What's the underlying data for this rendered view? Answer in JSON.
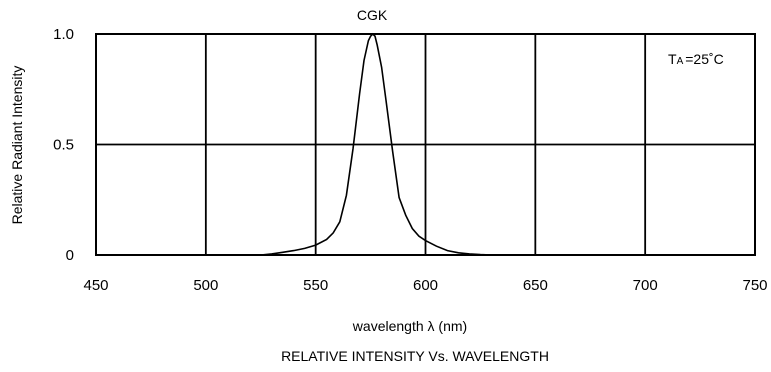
{
  "chart_data": {
    "type": "line",
    "top_label": "CGK",
    "xlabel": "wavelength λ (nm)",
    "ylabel": "Relative Radiant Intensity",
    "caption": "RELATIVE INTENSITY Vs. WAVELENGTH",
    "annotation": {
      "main": "T",
      "sub": "A",
      "rest": "=25˚C"
    },
    "xlim": [
      450,
      750
    ],
    "ylim": [
      0,
      1.0
    ],
    "x_ticks": [
      450,
      500,
      550,
      600,
      650,
      700,
      750
    ],
    "x_tick_labels": [
      "450",
      "500",
      "550",
      "600",
      "650",
      "700",
      "750"
    ],
    "y_ticks": [
      0,
      0.5,
      1.0
    ],
    "y_tick_labels": [
      "0",
      "0.5",
      "1.0"
    ],
    "grid": true,
    "series": [
      {
        "x": [
          525,
          530,
          535,
          540,
          545,
          550,
          555,
          558,
          561,
          564,
          567,
          570,
          572,
          574,
          575,
          576,
          577,
          578,
          580,
          582,
          585,
          588,
          591,
          594,
          597,
          600,
          605,
          610,
          615,
          620,
          625,
          630
        ],
        "y": [
          0.0,
          0.005,
          0.012,
          0.02,
          0.03,
          0.045,
          0.07,
          0.1,
          0.15,
          0.27,
          0.48,
          0.73,
          0.88,
          0.97,
          0.99,
          1.0,
          0.99,
          0.95,
          0.85,
          0.7,
          0.47,
          0.26,
          0.18,
          0.12,
          0.085,
          0.065,
          0.04,
          0.02,
          0.01,
          0.005,
          0.002,
          0.0
        ]
      }
    ]
  }
}
